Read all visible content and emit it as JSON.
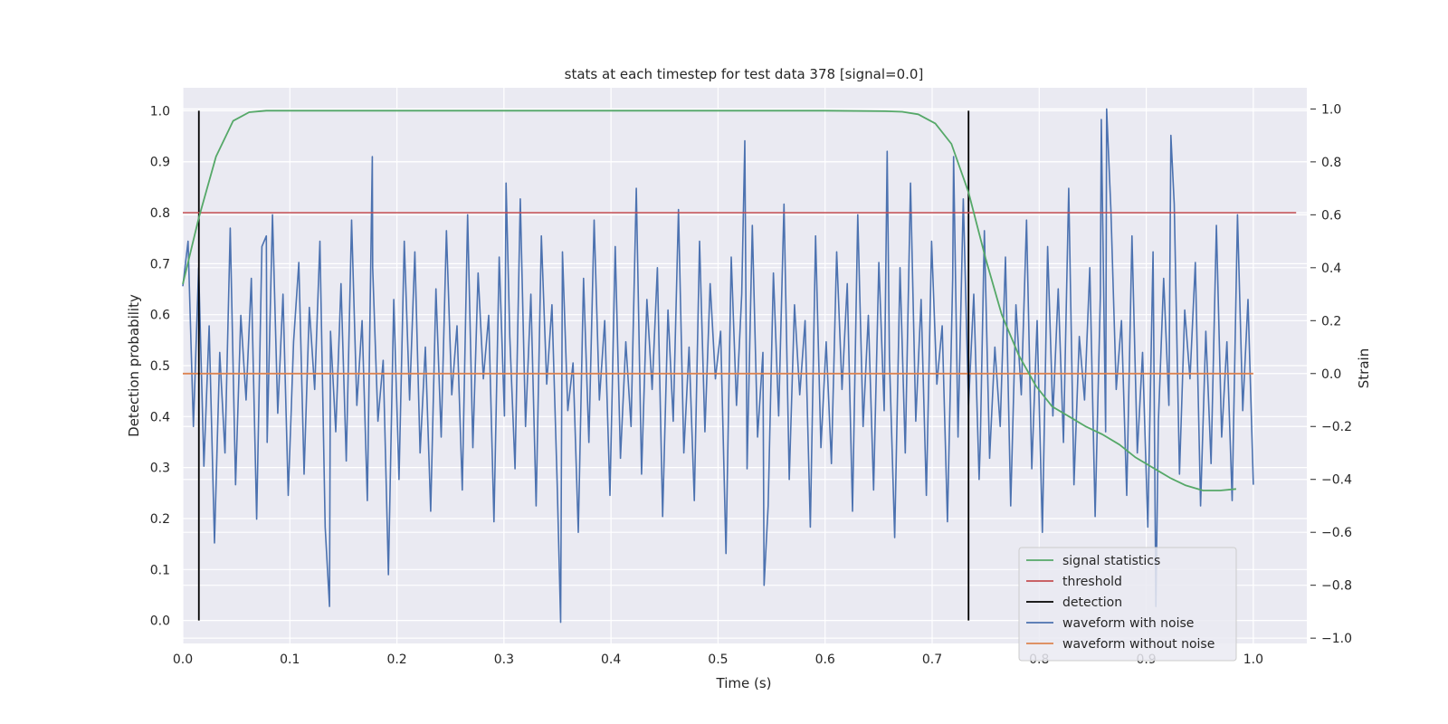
{
  "chart_data": {
    "type": "line",
    "title": "stats at each timestep for test data 378 [signal=0.0]",
    "xlabel": "Time (s)",
    "ylabel_left": "Detection probability",
    "ylabel_right": "Strain",
    "xlim": [
      0.0,
      1.05
    ],
    "ylim_left": [
      -0.045,
      1.045
    ],
    "ylim_right": [
      -1.02,
      1.08
    ],
    "x_ticks": [
      "0.0",
      "0.1",
      "0.2",
      "0.3",
      "0.4",
      "0.5",
      "0.6",
      "0.7",
      "0.8",
      "0.9",
      "1.0"
    ],
    "y_left_ticks": [
      "0.0",
      "0.1",
      "0.2",
      "0.3",
      "0.4",
      "0.5",
      "0.6",
      "0.7",
      "0.8",
      "0.9",
      "1.0"
    ],
    "y_right_ticks": [
      "−1.0",
      "−0.8",
      "−0.6",
      "−0.4",
      "−0.2",
      "0.0",
      "0.2",
      "0.4",
      "0.6",
      "0.8",
      "1.0"
    ],
    "grid": true,
    "legend_position": "lower-right",
    "colors": {
      "plot_bg": "#eaeaf2",
      "grid": "#ffffff",
      "signal_statistics": "#55a868",
      "threshold": "#c44e52",
      "detection": "#000000",
      "waveform_with_noise": "#4c72b0",
      "waveform_without_noise": "#dd8452"
    },
    "series": [
      {
        "name": "signal statistics",
        "axis": "left",
        "x": [
          0.0,
          0.015,
          0.031,
          0.047,
          0.062,
          0.078,
          0.094,
          0.15,
          0.3,
          0.45,
          0.6,
          0.656,
          0.672,
          0.687,
          0.703,
          0.718,
          0.734,
          0.75,
          0.765,
          0.781,
          0.797,
          0.812,
          0.828,
          0.844,
          0.859,
          0.875,
          0.89,
          0.906,
          0.922,
          0.937,
          0.953,
          0.969,
          0.984
        ],
        "values": [
          0.66,
          0.79,
          0.91,
          0.98,
          0.997,
          1.0,
          1.0,
          1.0,
          1.0,
          1.0,
          1.0,
          0.999,
          0.998,
          0.993,
          0.975,
          0.935,
          0.84,
          0.71,
          0.6,
          0.52,
          0.46,
          0.42,
          0.4,
          0.38,
          0.365,
          0.345,
          0.32,
          0.3,
          0.28,
          0.265,
          0.255,
          0.255,
          0.258
        ]
      },
      {
        "name": "threshold",
        "axis": "left",
        "x": [
          0.0,
          1.04
        ],
        "values": [
          0.8,
          0.8
        ]
      },
      {
        "name": "detection",
        "axis": "left",
        "events": [
          0.015,
          0.734
        ],
        "range": [
          0.0,
          1.0
        ]
      },
      {
        "name": "waveform with noise",
        "axis": "right",
        "x_range": [
          0.0,
          1.0
        ],
        "amplitude_range": [
          -0.94,
          1.0
        ],
        "values": [
          0.33,
          0.5,
          -0.2,
          0.4,
          -0.35,
          0.18,
          -0.64,
          0.08,
          -0.3,
          0.55,
          -0.42,
          0.22,
          -0.1,
          0.36,
          -0.55,
          0.48,
          -0.26,
          0.6,
          -0.15,
          0.3,
          -0.46,
          0.12,
          0.42,
          -0.38,
          0.25,
          -0.06,
          0.5,
          -0.58,
          0.16,
          -0.22,
          0.34,
          -0.33,
          0.58,
          -0.12,
          0.2,
          -0.48,
          0.4,
          -0.18,
          0.05,
          -0.76,
          0.28,
          -0.4,
          0.5,
          -0.1,
          0.46,
          -0.3,
          0.1,
          -0.52,
          0.32,
          -0.24,
          0.54,
          -0.08,
          0.18,
          -0.44,
          0.6,
          -0.28,
          0.38,
          -0.02,
          0.22,
          -0.56,
          0.44,
          -0.16,
          0.14,
          -0.36,
          0.66,
          -0.2,
          0.3,
          -0.5,
          0.52,
          -0.04,
          0.26,
          -0.42,
          0.46,
          -0.14,
          0.04,
          -0.6,
          0.36,
          -0.26,
          0.58,
          -0.1,
          0.2,
          -0.46,
          0.48,
          -0.32,
          0.12,
          -0.2,
          0.7,
          -0.38,
          0.28,
          -0.06,
          0.4,
          -0.54,
          0.24,
          -0.18,
          0.62,
          -0.3,
          0.1,
          -0.48,
          0.5,
          -0.22,
          0.34,
          -0.02,
          0.16,
          -0.68,
          0.44,
          -0.12,
          0.3,
          -0.36,
          0.56,
          -0.24,
          0.08,
          -0.5,
          0.38,
          -0.16,
          0.64,
          -0.4,
          0.26,
          -0.08,
          0.2,
          -0.58,
          0.52,
          -0.28,
          0.12,
          -0.34,
          0.46,
          -0.06,
          0.34,
          -0.52,
          0.6,
          -0.2,
          0.22,
          -0.44,
          0.42,
          -0.14,
          0.06,
          -0.62,
          0.4,
          -0.3,
          0.72,
          -0.18,
          0.28,
          -0.46,
          0.5,
          -0.04,
          0.18,
          -0.56,
          0.36,
          -0.24,
          0.66,
          -0.12,
          0.3,
          -0.4,
          0.54,
          -0.32,
          0.1,
          -0.2,
          0.44,
          -0.5,
          0.26,
          -0.08,
          0.58,
          -0.36,
          0.2,
          -0.6,
          0.48,
          -0.16,
          0.32,
          -0.26,
          0.7,
          -0.42,
          0.14,
          -0.1,
          0.4,
          -0.54,
          0.3,
          -0.22,
          0.62,
          -0.06,
          0.2,
          -0.46,
          0.52,
          -0.3,
          0.08,
          -0.58,
          0.46,
          -0.18,
          0.36,
          -0.12,
          0.64,
          -0.38,
          0.24,
          -0.02,
          0.42,
          -0.5,
          0.16,
          -0.34,
          0.56,
          -0.24,
          0.12,
          -0.48,
          0.6,
          -0.14,
          0.28,
          -0.42
        ],
        "annotated_extremes": [
          {
            "x": 0.078,
            "value": 0.52
          },
          {
            "x": 0.137,
            "value": -0.88
          },
          {
            "x": 0.177,
            "value": 0.82
          },
          {
            "x": 0.302,
            "value": 0.72
          },
          {
            "x": 0.353,
            "value": -0.94
          },
          {
            "x": 0.525,
            "value": 0.88
          },
          {
            "x": 0.543,
            "value": -0.8
          },
          {
            "x": 0.658,
            "value": 0.84
          },
          {
            "x": 0.72,
            "value": 0.82
          },
          {
            "x": 0.745,
            "value": -0.26
          },
          {
            "x": 0.858,
            "value": 0.96
          },
          {
            "x": 0.863,
            "value": 1.0
          },
          {
            "x": 0.909,
            "value": -0.88
          },
          {
            "x": 0.923,
            "value": 0.9
          }
        ]
      },
      {
        "name": "waveform without noise",
        "axis": "right",
        "x": [
          0.0,
          1.0
        ],
        "values": [
          0.0,
          0.0
        ]
      }
    ]
  }
}
